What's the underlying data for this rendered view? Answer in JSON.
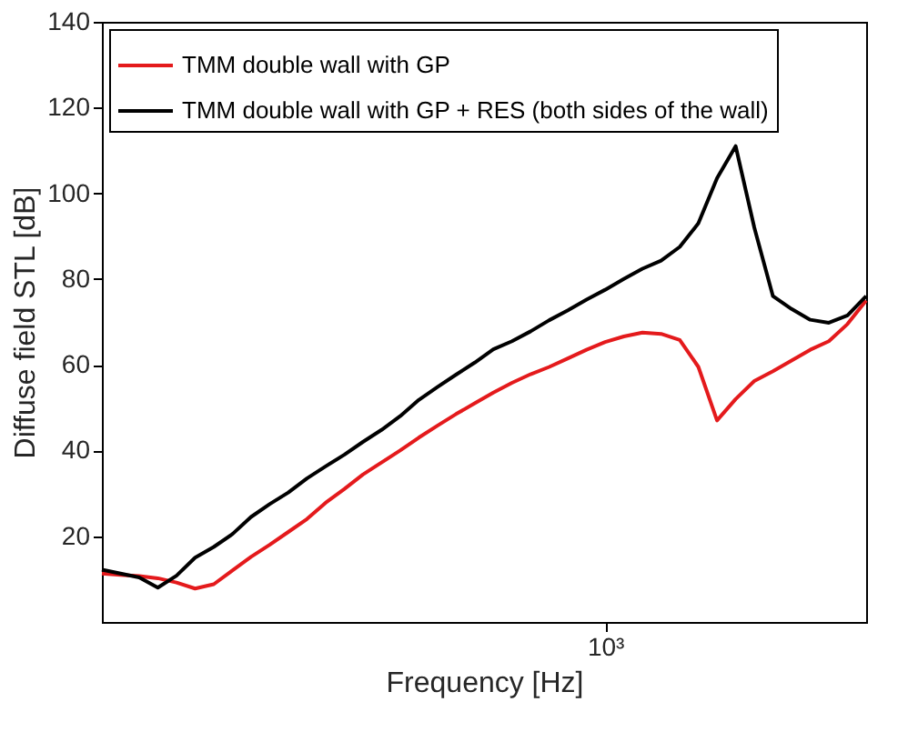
{
  "chart_data": {
    "type": "line",
    "xlabel": "Frequency [Hz]",
    "ylabel": "Diffuse field STL [dB]",
    "categories": [
      null,
      null,
      null,
      null,
      null,
      null,
      null,
      null,
      null,
      null,
      null,
      null,
      null,
      null,
      null,
      null,
      null,
      null,
      null,
      null,
      null,
      null,
      null,
      null,
      null,
      null,
      null,
      "10³",
      null,
      null,
      null,
      null,
      null,
      null,
      null,
      null,
      null,
      null,
      null,
      null,
      null,
      null
    ],
    "ylim": [
      0,
      140
    ],
    "yticks": [
      20,
      40,
      60,
      80,
      100,
      120,
      140
    ],
    "grid": false,
    "legend": "top left",
    "line_style": "solid",
    "marker": "none",
    "series": [
      {
        "name": "TMM double wall with GP",
        "color": "#e41a1c",
        "values": [
          11.3,
          11,
          10.7,
          10.2,
          9.2,
          7.8,
          8.8,
          12,
          15.2,
          18,
          21,
          24,
          27.8,
          31,
          34.4,
          37.2,
          40,
          43,
          45.8,
          48.5,
          51,
          53.5,
          55.8,
          57.8,
          59.5,
          61.5,
          63.5,
          65.3,
          66.6,
          67.5,
          67.2,
          65.8,
          59.5,
          47,
          52,
          56.2,
          58.5,
          61,
          63.5,
          65.5,
          69.5,
          75
        ]
      },
      {
        "name": "TMM double wall with GP + RES (both sides of the wall)",
        "color": "#000000",
        "values": [
          12.2,
          11.3,
          10.4,
          8,
          10.8,
          15,
          17.5,
          20.5,
          24.5,
          27.5,
          30.2,
          33.5,
          36.3,
          39,
          42,
          44.8,
          48,
          51.8,
          54.8,
          57.7,
          60.5,
          63.6,
          65.5,
          67.8,
          70.4,
          72.7,
          75.2,
          77.5,
          80,
          82.4,
          84.3,
          87.5,
          93,
          103.5,
          111,
          92,
          76,
          73,
          70.5,
          69.8,
          71.5,
          76
        ]
      }
    ]
  }
}
